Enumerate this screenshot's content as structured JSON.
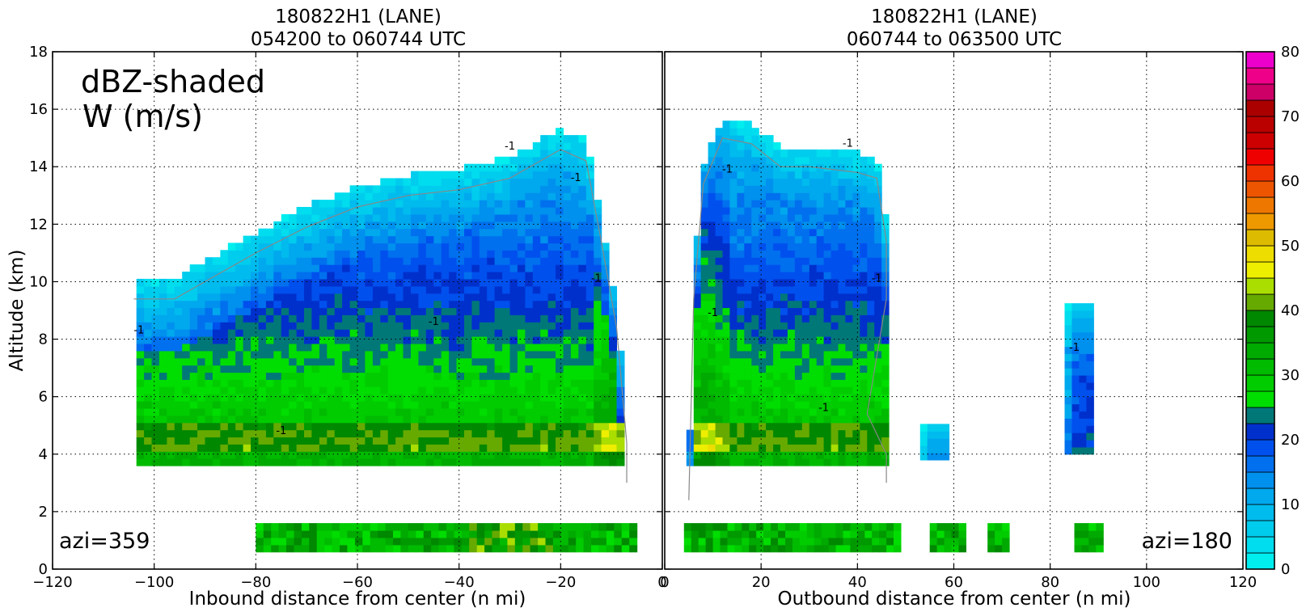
{
  "chart_data": [
    {
      "type": "contour",
      "title": "180822H1 (LANE)",
      "subtitle": "054200 to 060744 UTC",
      "xlabel": "Inbound distance from center (n mi)",
      "ylabel": "Altitude (km)",
      "xlim": [
        -120,
        0
      ],
      "ylim": [
        0,
        18
      ],
      "xticks": [
        "−120",
        "−100",
        "−80",
        "−60",
        "−40",
        "−20",
        "0"
      ],
      "xtick_values": [
        -120,
        -100,
        -80,
        -60,
        -40,
        -20,
        0
      ],
      "yticks": [
        "0",
        "2",
        "4",
        "6",
        "8",
        "10",
        "12",
        "14",
        "16",
        "18"
      ],
      "ytick_values": [
        0,
        2,
        4,
        6,
        8,
        10,
        12,
        14,
        16,
        18
      ],
      "grid": true,
      "annotation_top": "dBZ-shaded",
      "annotation_top2": "W (m/s)",
      "annotation_bottom": "azi=359",
      "contour_label": "-1",
      "echo_top_profile": [
        [
          -104,
          10.0
        ],
        [
          -96,
          10.0
        ],
        [
          -90,
          10.6
        ],
        [
          -80,
          11.6
        ],
        [
          -70,
          12.5
        ],
        [
          -60,
          13.2
        ],
        [
          -50,
          13.6
        ],
        [
          -40,
          13.8
        ],
        [
          -30,
          14.2
        ],
        [
          -24,
          14.8
        ],
        [
          -20,
          15.2
        ],
        [
          -15,
          14.8
        ],
        [
          -12,
          12.0
        ],
        [
          -9,
          9.0
        ],
        [
          -7,
          5.0
        ],
        [
          -7,
          3.6
        ]
      ],
      "echo_base_km": 3.6,
      "bright_band_km": [
        4.0,
        5.0
      ],
      "low_level_km": [
        0.6,
        1.4
      ],
      "low_level_x": [
        -80,
        -6
      ]
    },
    {
      "type": "contour",
      "title": "180822H1 (LANE)",
      "subtitle": "060744 to 063500 UTC",
      "xlabel": "Outbound distance from center (n mi)",
      "ylabel": "",
      "xlim": [
        0,
        120
      ],
      "ylim": [
        0,
        18
      ],
      "xticks": [
        "0",
        "20",
        "40",
        "60",
        "80",
        "100",
        "120"
      ],
      "xtick_values": [
        0,
        20,
        40,
        60,
        80,
        100,
        120
      ],
      "yticks": [],
      "grid": true,
      "annotation_bottom": "azi=180",
      "contour_label": "-1",
      "echo_top_profile": [
        [
          5,
          3.0
        ],
        [
          6,
          10.0
        ],
        [
          8,
          14.0
        ],
        [
          12,
          15.6
        ],
        [
          18,
          15.4
        ],
        [
          24,
          14.6
        ],
        [
          30,
          14.6
        ],
        [
          40,
          14.4
        ],
        [
          44,
          14.2
        ],
        [
          46,
          12.0
        ],
        [
          46,
          10.0
        ],
        [
          44,
          8.0
        ],
        [
          42,
          6.0
        ],
        [
          46,
          4.6
        ],
        [
          46,
          3.6
        ]
      ],
      "echo_base_km": 3.6,
      "bright_band_km": [
        4.0,
        5.0
      ],
      "isolated_cells": [
        [
          56,
          3.8,
          5.0
        ],
        [
          86,
          4.0,
          9.2
        ]
      ],
      "low_level_km": [
        0.6,
        1.4
      ],
      "low_level_x": [
        4,
        90
      ]
    }
  ],
  "colorbar": {
    "ticks": [
      "0",
      "10",
      "20",
      "30",
      "40",
      "50",
      "60",
      "70",
      "80"
    ],
    "tick_values": [
      0,
      10,
      20,
      30,
      40,
      50,
      60,
      70,
      80
    ],
    "min": 0,
    "max": 80,
    "step": 2.5,
    "colors": [
      "#00eeee",
      "#00ddee",
      "#00ccee",
      "#00bbee",
      "#00a8ee",
      "#0090ee",
      "#0070ee",
      "#0050ee",
      "#0030cc",
      "#007878",
      "#00dd00",
      "#00cc00",
      "#00bb00",
      "#00aa00",
      "#009900",
      "#008800",
      "#66aa00",
      "#aadd00",
      "#eeee00",
      "#eedd00",
      "#ddbb00",
      "#ee9900",
      "#ee7700",
      "#ee5500",
      "#ee3300",
      "#ee0000",
      "#cc0000",
      "#bb0000",
      "#aa0000",
      "#cc0066",
      "#ee0088",
      "#ee00cc",
      "#dd44dd",
      "#bb55cc",
      "#9955bb",
      "#664477",
      "#442255",
      "#000000"
    ]
  }
}
